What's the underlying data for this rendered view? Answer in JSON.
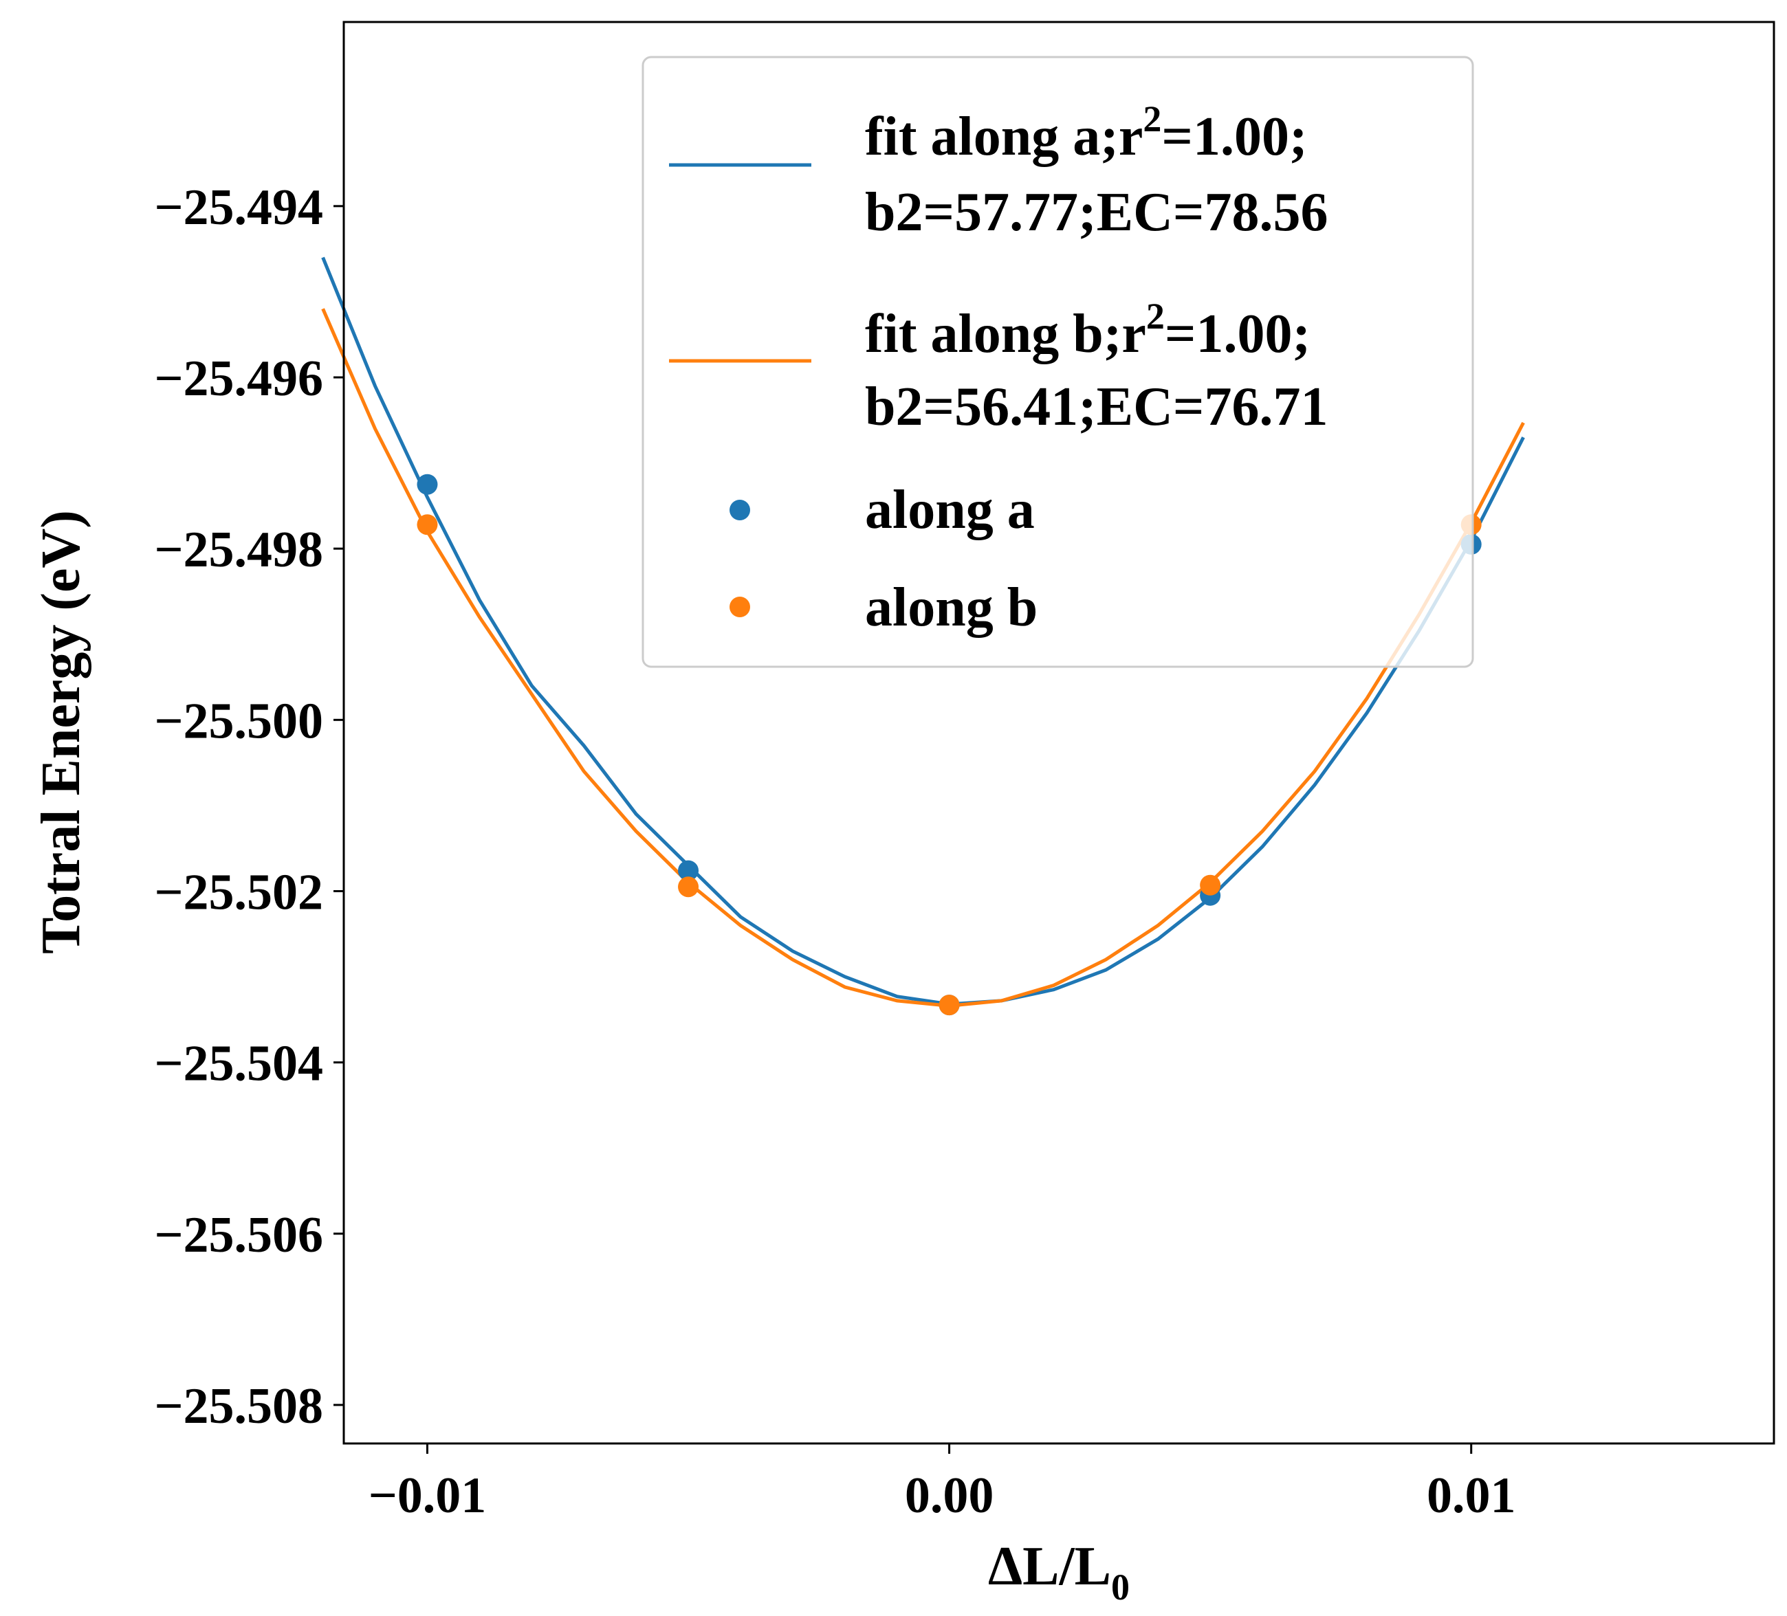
{
  "chart_data": {
    "type": "scatter",
    "xlabel": "ΔL/L",
    "xlabel_sub": "0",
    "ylabel": "Totral Energy (eV)",
    "xlim": [
      -0.0116,
      0.0158
    ],
    "ylim": [
      -25.50845,
      -25.49185
    ],
    "xticks": [
      -0.01,
      0.0,
      0.01
    ],
    "xtick_labels": [
      "−0.01",
      "0.00",
      "0.01"
    ],
    "yticks": [
      -25.494,
      -25.496,
      -25.498,
      -25.5,
      -25.502,
      -25.504,
      -25.506,
      -25.508
    ],
    "ytick_labels": [
      "−25.494",
      "−25.496",
      "−25.498",
      "−25.500",
      "−25.502",
      "−25.504",
      "−25.506",
      "−25.508"
    ],
    "grid": false,
    "legend_position": "top-center",
    "series": [
      {
        "name": "fit along a;r²=1.00; b2=57.77;EC=78.56",
        "kind": "line",
        "color": "#1f77b4",
        "x": [
          -0.012,
          -0.011,
          -0.01,
          -0.009,
          -0.008,
          -0.007,
          -0.006,
          -0.005,
          -0.004,
          -0.003,
          -0.002,
          -0.001,
          0.0,
          0.001,
          0.002,
          0.003,
          0.004,
          0.005,
          0.006,
          0.007,
          0.008,
          0.009,
          0.01,
          0.011
        ],
        "y": [
          -25.4946,
          -25.4961,
          -25.4974,
          -25.4986,
          -25.4996,
          -25.5003,
          -25.5011,
          -25.5017,
          -25.5023,
          -25.5027,
          -25.503,
          -25.50323,
          -25.50332,
          -25.50328,
          -25.50315,
          -25.50292,
          -25.50256,
          -25.50208,
          -25.50148,
          -25.50076,
          -25.49992,
          -25.49896,
          -25.4979,
          -25.4967
        ]
      },
      {
        "name": "fit along b;r²=1.00; b2=56.41;EC=76.71",
        "kind": "line",
        "color": "#ff7f0e",
        "x": [
          -0.012,
          -0.011,
          -0.01,
          -0.009,
          -0.008,
          -0.007,
          -0.006,
          -0.005,
          -0.004,
          -0.003,
          -0.002,
          -0.001,
          0.0,
          0.001,
          0.002,
          0.003,
          0.004,
          0.005,
          0.006,
          0.007,
          0.008,
          0.009,
          0.01,
          0.011
        ],
        "y": [
          -25.4952,
          -25.4966,
          -25.4978,
          -25.4988,
          -25.4997,
          -25.5006,
          -25.5013,
          -25.5019,
          -25.5024,
          -25.5028,
          -25.50312,
          -25.50328,
          -25.50334,
          -25.50328,
          -25.5031,
          -25.5028,
          -25.5024,
          -25.5019,
          -25.5013,
          -25.5006,
          -25.49975,
          -25.49877,
          -25.4977,
          -25.49653
        ]
      },
      {
        "name": "along a",
        "kind": "scatter",
        "color": "#1f77b4",
        "x": [
          -0.01,
          -0.005,
          0.0,
          0.005,
          0.01
        ],
        "y": [
          -25.49725,
          -25.50176,
          -25.50333,
          -25.50205,
          -25.49795
        ]
      },
      {
        "name": "along b",
        "kind": "scatter",
        "color": "#ff7f0e",
        "x": [
          -0.01,
          -0.005,
          0.0,
          0.005,
          0.01
        ],
        "y": [
          -25.49772,
          -25.50195,
          -25.50333,
          -25.50193,
          -25.49772
        ]
      }
    ],
    "legend": [
      {
        "line1": "fit along a;r",
        "sup": "2",
        "line1_rest": "=1.00;",
        "line2": "b2=57.77;EC=78.56",
        "color": "#1f77b4",
        "marker": "line"
      },
      {
        "line1": "fit along b;r",
        "sup": "2",
        "line1_rest": "=1.00;",
        "line2": "b2=56.41;EC=76.71",
        "color": "#ff7f0e",
        "marker": "line"
      },
      {
        "line1": "along a",
        "color": "#1f77b4",
        "marker": "dot"
      },
      {
        "line1": "along b",
        "color": "#ff7f0e",
        "marker": "dot"
      }
    ]
  }
}
